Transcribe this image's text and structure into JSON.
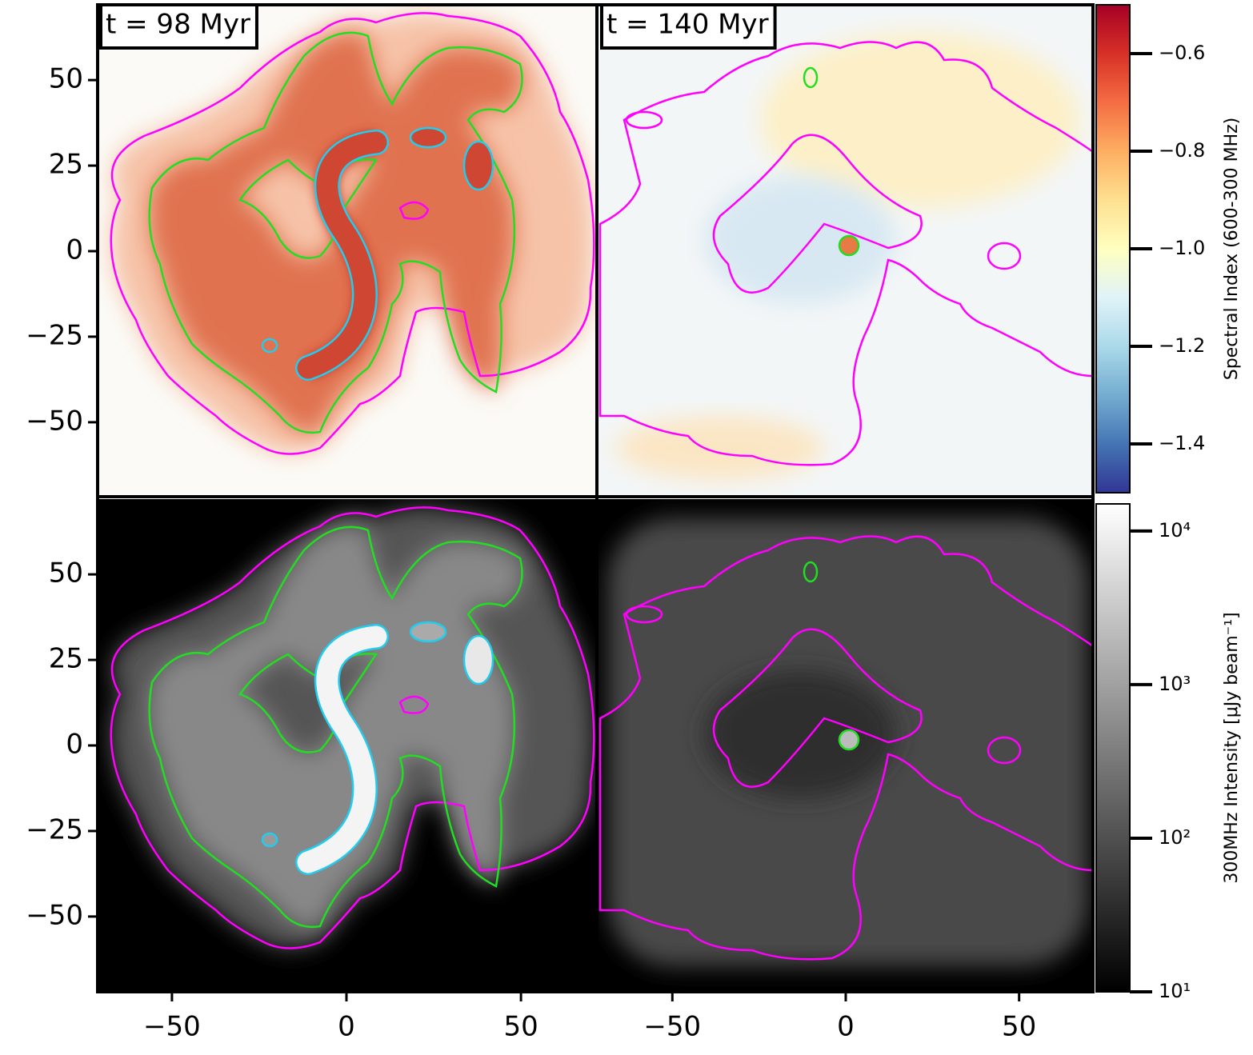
{
  "chart_data": {
    "type": "image",
    "panels": [
      "t = 98 Myr",
      "t = 140 Myr"
    ],
    "xlim": [
      -71.3,
      71.3
    ],
    "xticks": [
      {
        "value": -50,
        "label": "−50"
      },
      0,
      50
    ],
    "ylim": [
      -72,
      72
    ],
    "yticks": [
      {
        "value": -50,
        "label": "−50"
      },
      {
        "value": -25,
        "label": "−25"
      },
      0,
      25,
      50
    ],
    "colorbars": [
      {
        "label": "Spectral Index (600-300 MHz)",
        "lim": [
          -1.5,
          -0.5
        ],
        "ticks": [
          {
            "value": -0.6,
            "label": "−0.6"
          },
          {
            "value": -0.8,
            "label": "−0.8"
          },
          {
            "value": -1.0,
            "label": "−1.0"
          },
          {
            "value": -1.2,
            "label": "−1.2"
          },
          {
            "value": -1.4,
            "label": "−1.4"
          }
        ],
        "colors": [
          "#313695",
          "#4575b4",
          "#74add1",
          "#abd9e9",
          "#e0f3f8",
          "#ffffbf",
          "#fee090",
          "#fdae61",
          "#f46d43",
          "#d73027",
          "#a50026"
        ]
      },
      {
        "label": "300MHz Intensity [μJy beam⁻¹]",
        "log_scale": true,
        "lim": [
          10,
          15000
        ],
        "ticks": [
          {
            "value": 10,
            "label": "10¹"
          },
          {
            "value": 100,
            "label": "10²"
          },
          {
            "value": 1000,
            "label": "10³"
          },
          {
            "value": 10000,
            "label": "10⁴"
          }
        ],
        "colors": [
          "#000000",
          "#ffffff"
        ]
      }
    ]
  }
}
